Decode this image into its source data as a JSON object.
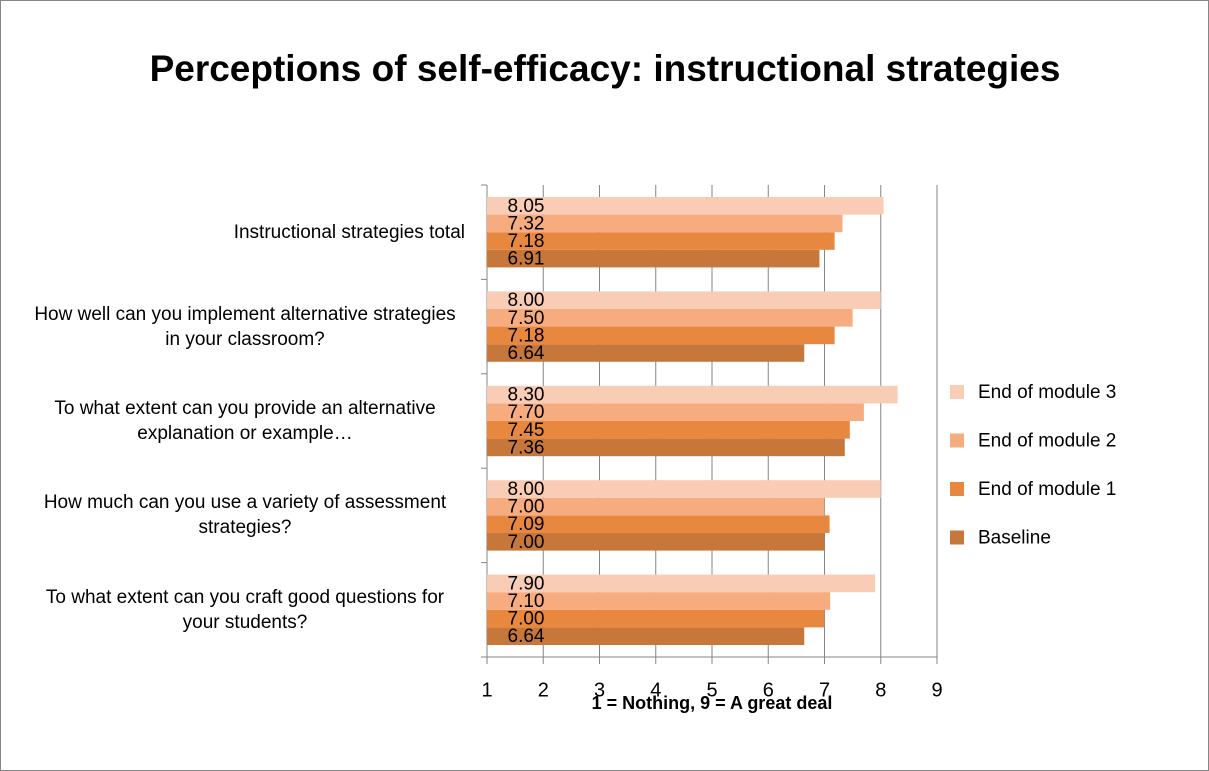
{
  "chart_data": {
    "type": "bar",
    "orientation": "horizontal",
    "title": "Perceptions of self-efficacy: instructional strategies",
    "xlabel": "1 = Nothing, 9 = A great deal",
    "categories": [
      "Instructional strategies total",
      "How well can you implement alternative strategies in your classroom?",
      "To what extent can you provide an alternative explanation or example…",
      "How much can you use a variety of assessment strategies?",
      "To what extent can you craft good questions for your students?"
    ],
    "series": [
      {
        "name": "Baseline",
        "color": "#c8773a",
        "values": [
          6.91,
          6.64,
          7.36,
          7.0,
          6.64
        ],
        "value_labels": [
          "6.91",
          "6.64",
          "7.36",
          "7.00",
          "6.64"
        ]
      },
      {
        "name": "End of module 1",
        "color": "#e8873e",
        "values": [
          7.18,
          7.18,
          7.45,
          7.09,
          7.0
        ],
        "value_labels": [
          "7.18",
          "7.18",
          "7.45",
          "7.09",
          "7.00"
        ]
      },
      {
        "name": "End of module 2",
        "color": "#f6ac7f",
        "values": [
          7.32,
          7.5,
          7.7,
          7.0,
          7.1
        ],
        "value_labels": [
          "7.32",
          "7.50",
          "7.70",
          "7.00",
          "7.10"
        ]
      },
      {
        "name": "End of module 3",
        "color": "#f9cdb5",
        "values": [
          8.05,
          8.0,
          8.3,
          8.0,
          7.9
        ],
        "value_labels": [
          "8.05",
          "8.00",
          "8.30",
          "8.00",
          "7.90"
        ]
      }
    ],
    "xlim": [
      1,
      9
    ],
    "xticks": [
      1,
      2,
      3,
      4,
      5,
      6,
      7,
      8,
      9
    ],
    "grid": true,
    "legend": "right"
  }
}
